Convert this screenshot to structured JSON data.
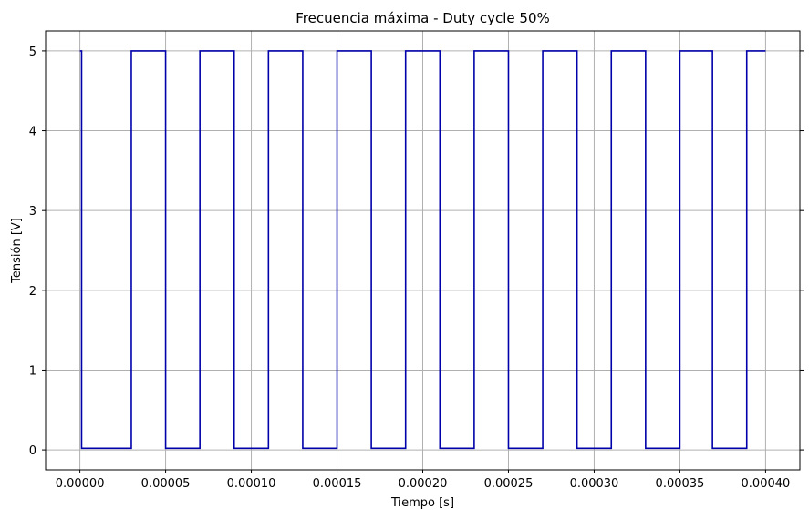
{
  "chart_data": {
    "type": "line",
    "title": "Frecuencia máxima - Duty cycle 50%",
    "xlabel": "Tiempo [s]",
    "ylabel": "Tensión [V]",
    "xlim": [
      -2e-05,
      0.00042
    ],
    "ylim": [
      -0.25,
      5.25
    ],
    "xticks": [
      0.0,
      5e-05,
      0.0001,
      0.00015,
      0.0002,
      0.00025,
      0.0003,
      0.00035,
      0.0004
    ],
    "xtick_labels": [
      "0.00000",
      "0.00005",
      "0.00010",
      "0.00015",
      "0.00020",
      "0.00025",
      "0.00030",
      "0.00035",
      "0.00040"
    ],
    "yticks": [
      0,
      1,
      2,
      3,
      4,
      5
    ],
    "ytick_labels": [
      "0",
      "1",
      "2",
      "3",
      "4",
      "5"
    ],
    "grid": true,
    "step": "post",
    "series": [
      {
        "color": "#0000aa",
        "x": [
          0.0,
          1e-06,
          3e-05,
          5e-05,
          7e-05,
          9e-05,
          0.00011,
          0.00013,
          0.00015,
          0.00017,
          0.00019,
          0.00021,
          0.00023,
          0.00025,
          0.00027,
          0.00029,
          0.00031,
          0.00033,
          0.00035,
          0.000369,
          0.000389,
          0.0004
        ],
        "y": [
          5,
          0.02,
          5,
          0.02,
          5,
          0.02,
          5,
          0.02,
          5,
          0.02,
          5,
          0.02,
          5,
          0.02,
          5,
          0.02,
          5,
          0.02,
          5,
          0.02,
          5,
          5
        ]
      }
    ]
  }
}
